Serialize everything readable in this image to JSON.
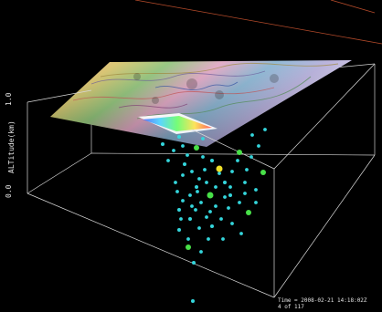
{
  "axis": {
    "title": "ALTitude(km)",
    "top_value": "1.0",
    "bottom_value": "0.0"
  },
  "status": {
    "time": "Time = 2008-02-21 14:18:02Z",
    "frame": "4 of 117"
  },
  "colors": {
    "background": "#000000",
    "box_lines": "#e0e0e0",
    "far_edge_lines": "#b34a2a",
    "event_cyan": "#34d6dc",
    "event_green": "#48e048",
    "event_yellow": "#f0e028"
  },
  "events": [
    {
      "color": "cyan"
    },
    {
      "color": "cyan"
    },
    {
      "color": "green"
    },
    {
      "color": "cyan"
    },
    {
      "color": "cyan"
    },
    {
      "color": "yellow"
    },
    {
      "color": "green"
    },
    {
      "color": "cyan"
    },
    {
      "color": "cyan"
    },
    {
      "color": "green"
    },
    {
      "color": "cyan"
    },
    {
      "color": "cyan"
    },
    {
      "color": "cyan"
    },
    {
      "color": "green"
    },
    {
      "color": "cyan"
    },
    {
      "color": "cyan"
    },
    {
      "color": "green"
    },
    {
      "color": "cyan"
    },
    {
      "color": "cyan"
    },
    {
      "color": "green"
    }
  ]
}
